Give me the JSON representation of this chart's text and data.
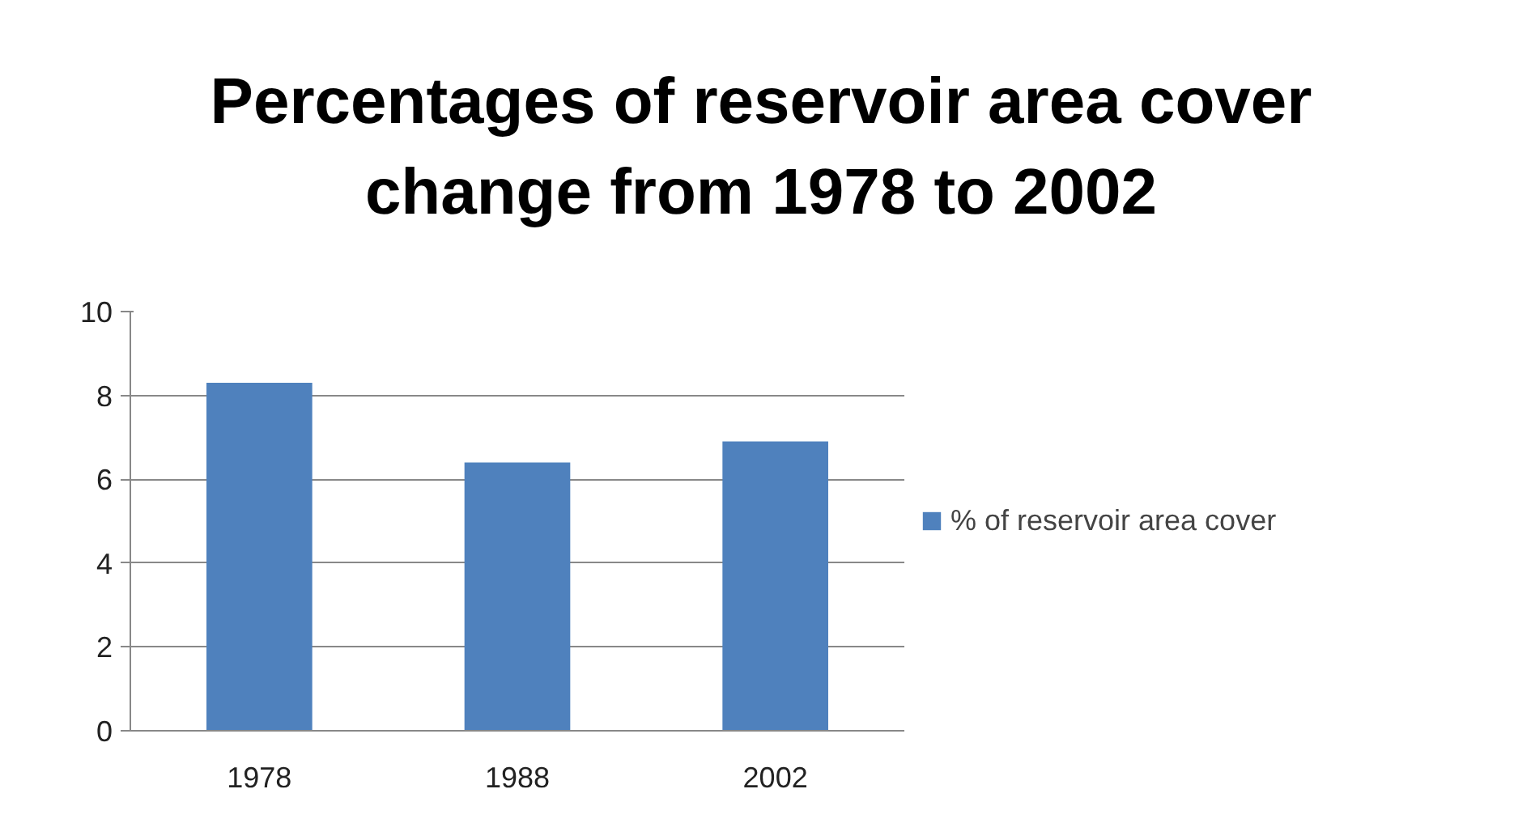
{
  "chart_data": {
    "type": "bar",
    "title": "Percentages  of reservoir area cover change from 1978 to 2002",
    "categories": [
      "1978",
      "1988",
      "2002"
    ],
    "series": [
      {
        "name": "% of reservoir area cover",
        "color": "#4f81bd",
        "values": [
          8.3,
          6.4,
          6.9
        ]
      }
    ],
    "ylim": [
      0,
      10
    ],
    "yticks": [
      0,
      2,
      4,
      6,
      8,
      10
    ],
    "grid": "y",
    "legend": "right"
  }
}
